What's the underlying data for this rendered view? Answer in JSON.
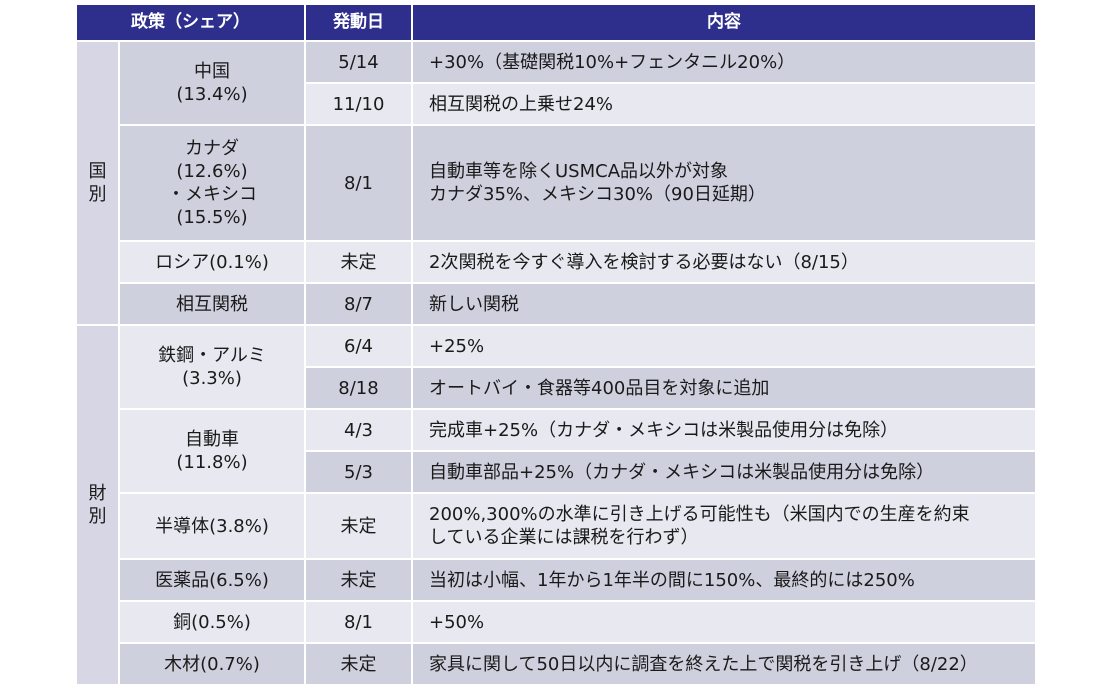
{
  "header": {
    "policy": "政策（シェア）",
    "date": "発動日",
    "content": "内容"
  },
  "groups": {
    "country": [
      "国",
      "別"
    ],
    "goods": [
      "財",
      "別"
    ]
  },
  "rows": {
    "china": {
      "name": [
        "中国",
        "(13.4%)"
      ]
    },
    "china_1": {
      "date": "5/14",
      "content": [
        "+30%（基礎関税10%+フェンタニル20%）"
      ]
    },
    "china_2": {
      "date": "11/10",
      "content": [
        "相互関税の上乗せ24%"
      ]
    },
    "canmex": {
      "name": [
        "カナダ",
        "(12.6%)",
        "・メキシコ",
        "(15.5%)"
      ],
      "date": "8/1",
      "content": [
        "自動車等を除くUSMCA品以外が対象",
        "カナダ35%、メキシコ30%（90日延期）"
      ]
    },
    "russia": {
      "name": [
        "ロシア(0.1%)"
      ],
      "date": "未定",
      "content": [
        "2次関税を今すぐ導入を検討する必要はない（8/15）"
      ]
    },
    "reciprocal": {
      "name": [
        "相互関税"
      ],
      "date": "8/7",
      "content": [
        "新しい関税"
      ]
    },
    "steel": {
      "name": [
        "鉄鋼・アルミ",
        "(3.3%)"
      ]
    },
    "steel_1": {
      "date": "6/4",
      "content": [
        "+25%"
      ]
    },
    "steel_2": {
      "date": "8/18",
      "content": [
        "オートバイ・食器等400品目を対象に追加"
      ]
    },
    "auto": {
      "name": [
        "自動車",
        "(11.8%)"
      ]
    },
    "auto_1": {
      "date": "4/3",
      "content": [
        "完成車+25%（カナダ・メキシコは米製品使用分は免除）"
      ]
    },
    "auto_2": {
      "date": "5/3",
      "content": [
        "自動車部品+25%（カナダ・メキシコは米製品使用分は免除）"
      ]
    },
    "semi": {
      "name": [
        "半導体(3.8%)"
      ],
      "date": "未定",
      "content": [
        "200%,300%の水準に引き上げる可能性も（米国内での生産を約束",
        "している企業には課税を行わず）"
      ]
    },
    "pharma": {
      "name": [
        "医薬品(6.5%)"
      ],
      "date": "未定",
      "content": [
        "当初は小幅、1年から1年半の間に150%、最終的には250%"
      ]
    },
    "copper": {
      "name": [
        "銅(0.5%)"
      ],
      "date": "8/1",
      "content": [
        "+50%"
      ]
    },
    "lumber": {
      "name": [
        "木材(0.7%)"
      ],
      "date": "未定",
      "content": [
        "家具に関して50日以内に調査を終えた上で関税を引き上げ（8/22）"
      ]
    }
  }
}
